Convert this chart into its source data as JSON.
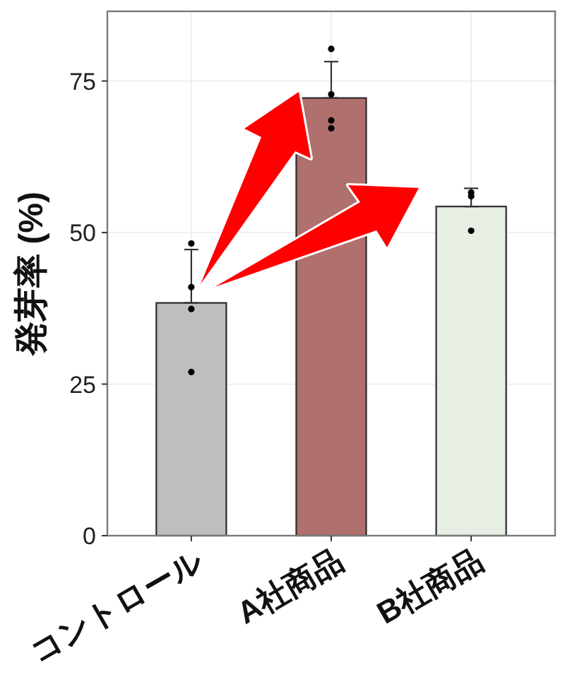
{
  "chart_data": {
    "type": "bar",
    "ylabel": "発芽率 (%)",
    "categories": [
      "コントロール",
      "A社商品",
      "B社商品"
    ],
    "ylim": [
      0,
      86.5
    ],
    "yticks": [
      0,
      25,
      50,
      75
    ],
    "grid": true,
    "series": [
      {
        "type": "bar",
        "colors": [
          "#bebebe",
          "#b0706e",
          "#e7efe4"
        ],
        "values": [
          38.4,
          72.2,
          54.3
        ],
        "errors": [
          [
            38.4,
            47.2
          ],
          [
            72.2,
            78.2
          ],
          [
            54.3,
            57.3
          ]
        ]
      },
      {
        "type": "scatter",
        "color": "#000000",
        "marker": "circle",
        "x": [
          "コントロール",
          "コントロール",
          "コントロール",
          "コントロール",
          "A社商品",
          "A社商品",
          "A社商品",
          "A社商品",
          "B社商品",
          "B社商品",
          "B社商品"
        ],
        "values": [
          48.2,
          41.0,
          37.4,
          27.0,
          80.3,
          72.8,
          68.5,
          67.2,
          56.6,
          56.0,
          50.3
        ]
      }
    ]
  }
}
